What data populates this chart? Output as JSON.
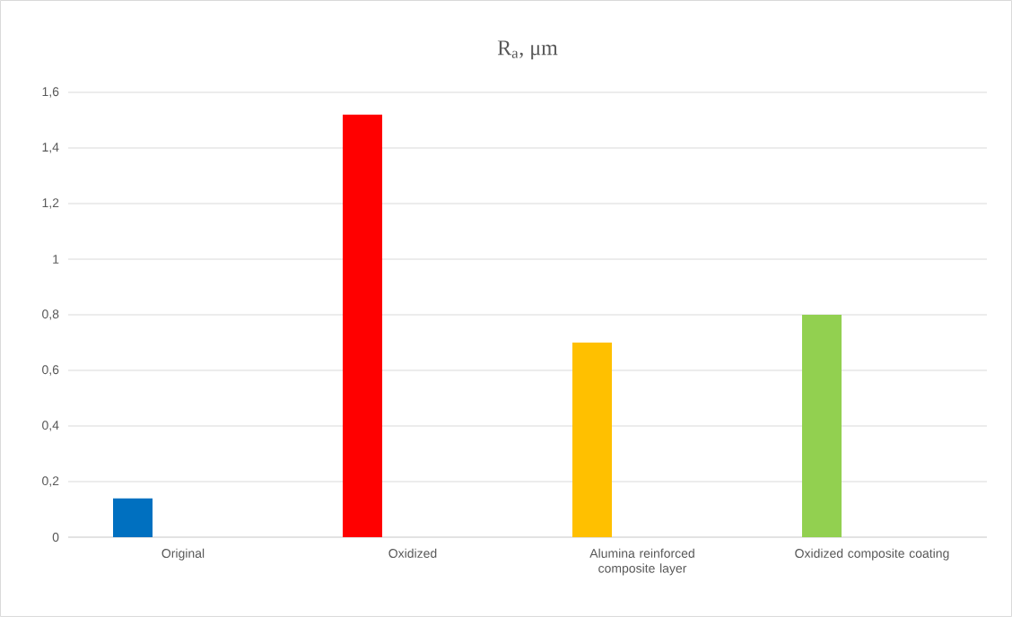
{
  "chart_data": {
    "type": "bar",
    "title": "R$_{a}$, μm",
    "categories": [
      "Original",
      "Oxidized",
      "Alumina reinforced composite layer",
      "Oxidized composite coating"
    ],
    "values": [
      0.14,
      1.52,
      0.7,
      0.8
    ],
    "colors": [
      "#0070c0",
      "#ff0000",
      "#ffc000",
      "#92d050"
    ],
    "ylim": [
      0,
      1.6
    ],
    "yticks": [
      0,
      {
        "value": 0.2,
        "label": "0,2"
      },
      {
        "value": 0.4,
        "label": "0,4"
      },
      {
        "value": 0.6,
        "label": "0,6"
      },
      {
        "value": 0.8,
        "label": "0,8"
      },
      1,
      {
        "value": 1.2,
        "label": "1,2"
      },
      {
        "value": 1.4,
        "label": "1,4"
      },
      {
        "value": 1.6,
        "label": "1,6"
      }
    ],
    "grid": "y"
  }
}
